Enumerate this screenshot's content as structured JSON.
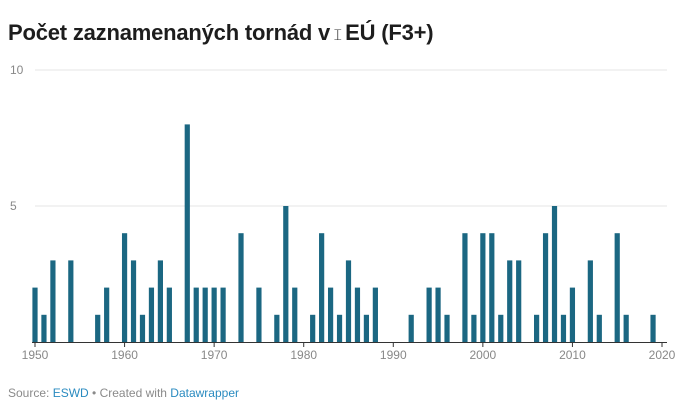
{
  "title_before": "Počet zaznamenaných tornád v",
  "title_after": "EÚ (F3+)",
  "footer": {
    "source_label": "Source:",
    "source_link": "ESWD",
    "separator": "• Created with",
    "tool_link": "Datawrapper"
  },
  "colors": {
    "bar": "#1b6782",
    "grid": "#e4e4e4",
    "baseline": "#333333",
    "link": "#2a8bc0"
  },
  "chart_data": {
    "type": "bar",
    "title": "Počet zaznamenaných tornád v EÚ (F3+)",
    "xlim": [
      1950,
      2020
    ],
    "ylim": [
      0,
      10
    ],
    "y_ticks": [
      5,
      10
    ],
    "x_ticks": [
      1950,
      1960,
      1970,
      1980,
      1990,
      2000,
      2010,
      2020
    ],
    "grid": true,
    "x": [
      1950,
      1951,
      1952,
      1954,
      1957,
      1958,
      1960,
      1961,
      1962,
      1963,
      1964,
      1965,
      1967,
      1968,
      1969,
      1970,
      1971,
      1973,
      1975,
      1977,
      1978,
      1979,
      1981,
      1982,
      1983,
      1984,
      1985,
      1986,
      1987,
      1988,
      1992,
      1994,
      1995,
      1996,
      1998,
      1999,
      2000,
      2001,
      2002,
      2003,
      2004,
      2006,
      2007,
      2008,
      2009,
      2010,
      2012,
      2013,
      2015,
      2016,
      2019
    ],
    "values": [
      2,
      1,
      3,
      3,
      1,
      2,
      4,
      3,
      1,
      2,
      3,
      2,
      8,
      2,
      2,
      2,
      2,
      4,
      2,
      1,
      5,
      2,
      1,
      4,
      2,
      1,
      3,
      2,
      1,
      2,
      1,
      2,
      2,
      1,
      4,
      1,
      4,
      4,
      1,
      3,
      3,
      1,
      4,
      5,
      1,
      2,
      3,
      1,
      4,
      1,
      1
    ]
  }
}
